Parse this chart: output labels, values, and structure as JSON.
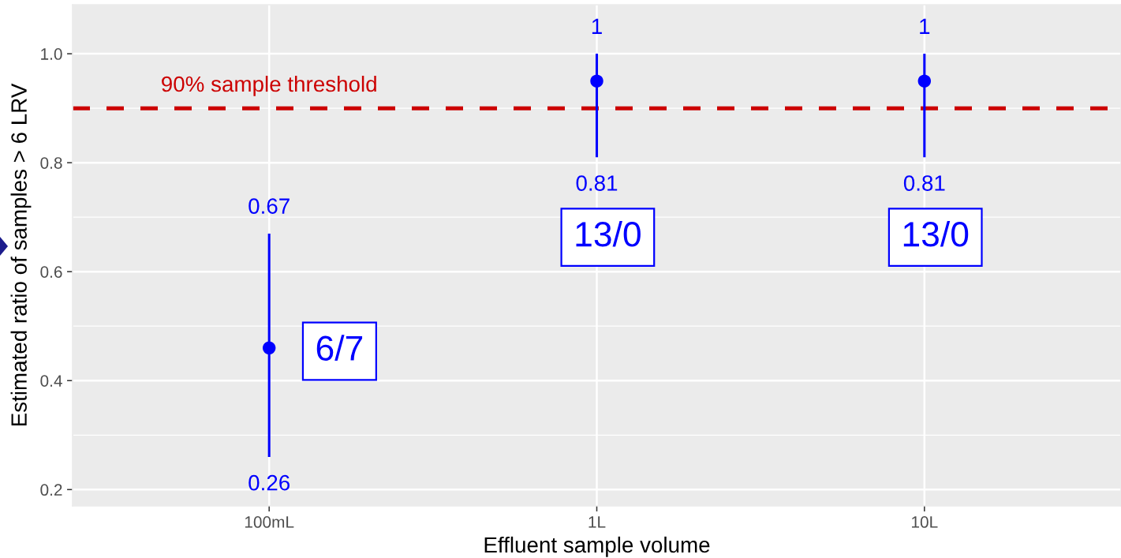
{
  "chart_data": {
    "type": "scatter",
    "xlabel": "Effluent sample volume",
    "ylabel": "Estimated ratio of samples > 6 LRV",
    "categories": [
      "100mL",
      "1L",
      "10L"
    ],
    "series": [
      {
        "color": "#0000ff",
        "values": [
          0.46,
          0.95,
          0.95
        ],
        "errors": [
          [
            0.26,
            0.67
          ],
          [
            0.81,
            1
          ],
          [
            0.81,
            1
          ]
        ]
      }
    ],
    "marker": "circle",
    "grid": true,
    "ylim": [
      0.17,
      1.09
    ],
    "yticks": [
      0.2,
      0.4,
      0.6,
      0.8,
      {
        "value": 1,
        "label": "1.0"
      }
    ],
    "ref_lines": [
      {
        "axis": "y",
        "value": 0.9,
        "label": "90% sample threshold",
        "color": "#cc0000",
        "line_style": "dashed"
      }
    ],
    "annotations": [
      {
        "text": "0.67",
        "x": "100mL",
        "y": 0.67
      },
      {
        "text": "0.26",
        "x": "100mL",
        "y": 0.26
      },
      {
        "text": "1",
        "x": "1L",
        "y": 1
      },
      {
        "text": "0.81",
        "x": "1L",
        "y": 0.81
      },
      {
        "text": "1",
        "x": "10L",
        "y": 1
      },
      {
        "text": "0.81",
        "x": "10L",
        "y": 0.81
      },
      "6/7",
      "13/0",
      "13/0"
    ]
  }
}
